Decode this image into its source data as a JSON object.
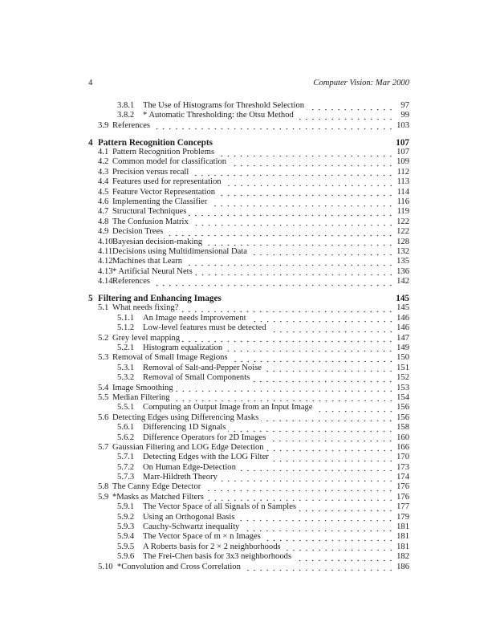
{
  "header": {
    "page_number": "4",
    "running_title": "Computer Vision: Mar 2000"
  },
  "entries": [
    {
      "level": 2,
      "num": "3.8.1",
      "title": "The Use of Histograms for Threshold Selection",
      "page": "97"
    },
    {
      "level": 2,
      "num": "3.8.2",
      "title": "* Automatic Thresholding: the Otsu Method",
      "page": "99"
    },
    {
      "level": 1,
      "num": "3.9",
      "title": "References",
      "page": "103"
    },
    {
      "level": 0,
      "num": "4",
      "title": "Pattern Recognition Concepts",
      "page": "107"
    },
    {
      "level": 1,
      "num": "4.1",
      "title": "Pattern Recognition Problems",
      "page": "107"
    },
    {
      "level": 1,
      "num": "4.2",
      "title": "Common model for classification",
      "page": "109"
    },
    {
      "level": 1,
      "num": "4.3",
      "title": "Precision versus recall",
      "page": "112"
    },
    {
      "level": 1,
      "num": "4.4",
      "title": "Features used for representation",
      "page": "113"
    },
    {
      "level": 1,
      "num": "4.5",
      "title": "Feature Vector Representation",
      "page": "114"
    },
    {
      "level": 1,
      "num": "4.6",
      "title": "Implementing the Classifier",
      "page": "116"
    },
    {
      "level": 1,
      "num": "4.7",
      "title": "Structural Techniques",
      "page": "119"
    },
    {
      "level": 1,
      "num": "4.8",
      "title": "The Confusion Matrix",
      "page": "122"
    },
    {
      "level": 1,
      "num": "4.9",
      "title": "Decision Trees",
      "page": "122"
    },
    {
      "level": 1,
      "num": "4.10",
      "title": "Bayesian decision-making",
      "page": "128"
    },
    {
      "level": 1,
      "num": "4.11",
      "title": "Decisions using Multidimensional Data",
      "page": "132"
    },
    {
      "level": 1,
      "num": "4.12",
      "title": "Machines that Learn",
      "page": "135"
    },
    {
      "level": 1,
      "num": "4.13",
      "title": "* Artificial Neural Nets",
      "page": "136"
    },
    {
      "level": 1,
      "num": "4.14",
      "title": "References",
      "page": "142"
    },
    {
      "level": 0,
      "num": "5",
      "title": "Filtering and Enhancing Images",
      "page": "145"
    },
    {
      "level": 1,
      "num": "5.1",
      "title": "What needs fixing?",
      "page": "145"
    },
    {
      "level": 2,
      "num": "5.1.1",
      "title": "An Image needs Improvement",
      "page": "146"
    },
    {
      "level": 2,
      "num": "5.1.2",
      "title": "Low-level features must be detected",
      "page": "146"
    },
    {
      "level": 1,
      "num": "5.2",
      "title": "Grey level mapping",
      "page": "147"
    },
    {
      "level": 2,
      "num": "5.2.1",
      "title": "Histogram equalization",
      "page": "149"
    },
    {
      "level": 1,
      "num": "5.3",
      "title": "Removal of Small Image Regions",
      "page": "150"
    },
    {
      "level": 2,
      "num": "5.3.1",
      "title": "Removal of Salt-and-Pepper Noise",
      "page": "151"
    },
    {
      "level": 2,
      "num": "5.3.2",
      "title": "Removal of Small Components",
      "page": "152"
    },
    {
      "level": 1,
      "num": "5.4",
      "title": "Image Smoothing",
      "page": "153"
    },
    {
      "level": 1,
      "num": "5.5",
      "title": "Median Filtering",
      "page": "154"
    },
    {
      "level": 2,
      "num": "5.5.1",
      "title": "Computing an Output Image from an Input Image",
      "page": "156"
    },
    {
      "level": 1,
      "num": "5.6",
      "title": "Detecting Edges using Differencing Masks",
      "page": "156"
    },
    {
      "level": 2,
      "num": "5.6.1",
      "title": "Differencing 1D Signals",
      "page": "158"
    },
    {
      "level": 2,
      "num": "5.6.2",
      "title": "Difference Operators for 2D Images",
      "page": "160"
    },
    {
      "level": 1,
      "num": "5.7",
      "title": "Gaussian Filtering and LOG Edge Detection",
      "page": "166"
    },
    {
      "level": 2,
      "num": "5.7.1",
      "title": "Detecting Edges with the LOG Filter",
      "page": "170"
    },
    {
      "level": 2,
      "num": "5.7.2",
      "title": "On Human Edge-Detection",
      "page": "173"
    },
    {
      "level": 2,
      "num": "5.7.3",
      "title": "Marr-Hildreth Theory",
      "page": "174"
    },
    {
      "level": 1,
      "num": "5.8",
      "title": "The Canny Edge Detector",
      "page": "176"
    },
    {
      "level": 1,
      "num": "5.9",
      "title": "*Masks as Matched Filters",
      "page": "176"
    },
    {
      "level": 2,
      "num": "5.9.1",
      "title": "The Vector Space of all Signals of n Samples",
      "page": "177"
    },
    {
      "level": 2,
      "num": "5.9.2",
      "title": "Using an Orthogonal Basis",
      "page": "179"
    },
    {
      "level": 2,
      "num": "5.9.3",
      "title": "Cauchy-Schwartz inequality",
      "page": "181"
    },
    {
      "level": 2,
      "num": "5.9.4",
      "title": "The Vector Space of m × n Images",
      "page": "181"
    },
    {
      "level": 2,
      "num": "5.9.5",
      "title": "A Roberts basis for 2 × 2 neighborhoods",
      "page": "181"
    },
    {
      "level": 2,
      "num": "5.9.6",
      "title": "The Frei-Chen basis for 3x3 neighborhoods",
      "page": "182"
    },
    {
      "level": 1,
      "num": "5.10",
      "title": "*Convolution and Cross Correlation",
      "page": "186"
    }
  ]
}
